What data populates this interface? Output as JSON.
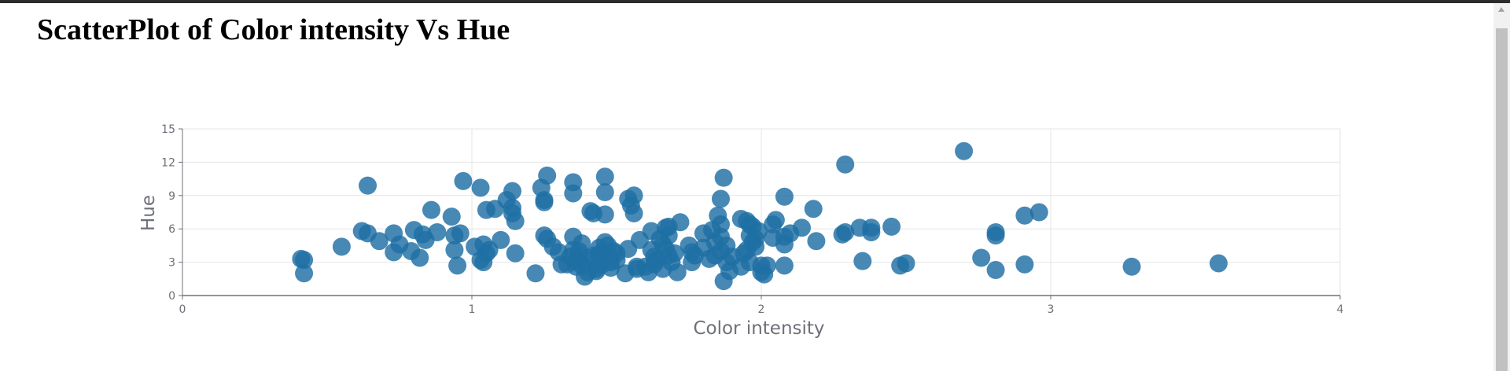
{
  "page": {
    "title": "ScatterPlot of Color intensity Vs Hue"
  },
  "colors": {
    "point": "#1f6fa3",
    "grid": "#e6e6e6",
    "axis": "#6e7079",
    "tick_text": "#6e7079",
    "axis_title": "#6e7079"
  },
  "chart_data": {
    "type": "scatter",
    "title": "ScatterPlot of Color intensity Vs Hue",
    "xlabel": "Color intensity",
    "ylabel": "Hue",
    "xlim": [
      0,
      4
    ],
    "ylim": [
      0,
      15
    ],
    "x_ticks": [
      0,
      1,
      2,
      3,
      4
    ],
    "y_ticks": [
      0,
      3,
      6,
      9,
      12,
      15
    ],
    "grid": true,
    "legend": "none",
    "points": [
      [
        0.41,
        3.3
      ],
      [
        0.42,
        3.2
      ],
      [
        0.42,
        2.0
      ],
      [
        0.55,
        4.4
      ],
      [
        0.62,
        5.8
      ],
      [
        0.64,
        9.9
      ],
      [
        0.64,
        5.6
      ],
      [
        0.68,
        4.9
      ],
      [
        0.73,
        3.9
      ],
      [
        0.73,
        5.6
      ],
      [
        0.75,
        4.6
      ],
      [
        0.79,
        4.0
      ],
      [
        0.8,
        5.9
      ],
      [
        0.82,
        3.4
      ],
      [
        0.83,
        5.5
      ],
      [
        0.84,
        5.0
      ],
      [
        0.86,
        7.7
      ],
      [
        0.88,
        5.7
      ],
      [
        0.93,
        7.1
      ],
      [
        0.94,
        5.4
      ],
      [
        0.94,
        4.1
      ],
      [
        0.95,
        2.7
      ],
      [
        0.96,
        5.6
      ],
      [
        0.97,
        10.3
      ],
      [
        1.01,
        4.4
      ],
      [
        1.03,
        3.2
      ],
      [
        1.03,
        9.7
      ],
      [
        1.04,
        4.6
      ],
      [
        1.04,
        3.0
      ],
      [
        1.05,
        7.7
      ],
      [
        1.05,
        3.8
      ],
      [
        1.06,
        4.1
      ],
      [
        1.08,
        7.8
      ],
      [
        1.1,
        5.0
      ],
      [
        1.12,
        8.6
      ],
      [
        1.14,
        9.4
      ],
      [
        1.14,
        7.9
      ],
      [
        1.14,
        7.4
      ],
      [
        1.15,
        6.7
      ],
      [
        1.15,
        3.8
      ],
      [
        1.22,
        2.0
      ],
      [
        1.24,
        9.7
      ],
      [
        1.25,
        5.4
      ],
      [
        1.25,
        8.6
      ],
      [
        1.25,
        8.4
      ],
      [
        1.26,
        5.1
      ],
      [
        1.26,
        10.8
      ],
      [
        1.28,
        4.4
      ],
      [
        1.3,
        3.9
      ],
      [
        1.31,
        2.8
      ],
      [
        1.33,
        2.8
      ],
      [
        1.34,
        3.5
      ],
      [
        1.35,
        10.2
      ],
      [
        1.35,
        9.2
      ],
      [
        1.35,
        5.3
      ],
      [
        1.35,
        4.1
      ],
      [
        1.36,
        3.1
      ],
      [
        1.36,
        2.6
      ],
      [
        1.37,
        4.0
      ],
      [
        1.37,
        3.3
      ],
      [
        1.38,
        2.7
      ],
      [
        1.38,
        4.7
      ],
      [
        1.39,
        1.7
      ],
      [
        1.4,
        3.4
      ],
      [
        1.4,
        2.1
      ],
      [
        1.41,
        7.6
      ],
      [
        1.42,
        7.4
      ],
      [
        1.42,
        3.6
      ],
      [
        1.43,
        2.4
      ],
      [
        1.43,
        2.2
      ],
      [
        1.44,
        3.7
      ],
      [
        1.44,
        4.3
      ],
      [
        1.45,
        2.8
      ],
      [
        1.45,
        3.9
      ],
      [
        1.46,
        4.8
      ],
      [
        1.46,
        10.7
      ],
      [
        1.46,
        9.3
      ],
      [
        1.46,
        7.3
      ],
      [
        1.47,
        4.5
      ],
      [
        1.48,
        3.0
      ],
      [
        1.48,
        2.5
      ],
      [
        1.49,
        4.0
      ],
      [
        1.5,
        3.2
      ],
      [
        1.5,
        3.8
      ],
      [
        1.53,
        2.0
      ],
      [
        1.54,
        4.2
      ],
      [
        1.54,
        8.7
      ],
      [
        1.55,
        8.1
      ],
      [
        1.56,
        9.0
      ],
      [
        1.56,
        7.4
      ],
      [
        1.57,
        2.4
      ],
      [
        1.57,
        2.6
      ],
      [
        1.58,
        5.0
      ],
      [
        1.6,
        2.6
      ],
      [
        1.61,
        2.1
      ],
      [
        1.62,
        5.8
      ],
      [
        1.62,
        4.1
      ],
      [
        1.63,
        3.5
      ],
      [
        1.63,
        2.8
      ],
      [
        1.64,
        3.2
      ],
      [
        1.65,
        5.1
      ],
      [
        1.66,
        4.6
      ],
      [
        1.66,
        2.4
      ],
      [
        1.67,
        6.1
      ],
      [
        1.67,
        4.2
      ],
      [
        1.68,
        3.6
      ],
      [
        1.68,
        5.4
      ],
      [
        1.68,
        6.2
      ],
      [
        1.69,
        3.0
      ],
      [
        1.7,
        3.8
      ],
      [
        1.71,
        2.1
      ],
      [
        1.72,
        6.6
      ],
      [
        1.75,
        4.5
      ],
      [
        1.76,
        3.9
      ],
      [
        1.76,
        3.0
      ],
      [
        1.77,
        3.6
      ],
      [
        1.8,
        5.6
      ],
      [
        1.8,
        4.3
      ],
      [
        1.82,
        3.3
      ],
      [
        1.83,
        5.9
      ],
      [
        1.84,
        3.6
      ],
      [
        1.84,
        4.8
      ],
      [
        1.85,
        7.2
      ],
      [
        1.86,
        8.7
      ],
      [
        1.86,
        6.4
      ],
      [
        1.86,
        5.3
      ],
      [
        1.86,
        4.0
      ],
      [
        1.87,
        10.6
      ],
      [
        1.87,
        1.3
      ],
      [
        1.88,
        4.5
      ],
      [
        1.88,
        3.0
      ],
      [
        1.89,
        2.2
      ],
      [
        1.9,
        3.5
      ],
      [
        1.93,
        6.9
      ],
      [
        1.93,
        2.6
      ],
      [
        1.94,
        3.8
      ],
      [
        1.95,
        6.7
      ],
      [
        1.95,
        4.1
      ],
      [
        1.96,
        6.4
      ],
      [
        1.96,
        5.4
      ],
      [
        1.96,
        3.0
      ],
      [
        1.97,
        6.2
      ],
      [
        1.97,
        4.8
      ],
      [
        1.98,
        5.1
      ],
      [
        1.98,
        4.4
      ],
      [
        1.99,
        5.8
      ],
      [
        2.0,
        2.7
      ],
      [
        2.0,
        2.1
      ],
      [
        2.01,
        1.9
      ],
      [
        2.02,
        2.7
      ],
      [
        2.04,
        5.2
      ],
      [
        2.04,
        6.4
      ],
      [
        2.05,
        6.8
      ],
      [
        2.08,
        8.9
      ],
      [
        2.08,
        5.3
      ],
      [
        2.08,
        4.6
      ],
      [
        2.08,
        2.7
      ],
      [
        2.1,
        5.6
      ],
      [
        2.14,
        6.1
      ],
      [
        2.18,
        7.8
      ],
      [
        2.19,
        4.9
      ],
      [
        2.28,
        5.5
      ],
      [
        2.29,
        11.8
      ],
      [
        2.29,
        5.7
      ],
      [
        2.34,
        6.1
      ],
      [
        2.35,
        3.1
      ],
      [
        2.38,
        6.1
      ],
      [
        2.38,
        5.7
      ],
      [
        2.45,
        6.2
      ],
      [
        2.48,
        2.7
      ],
      [
        2.5,
        2.9
      ],
      [
        2.7,
        13.0
      ],
      [
        2.76,
        3.4
      ],
      [
        2.81,
        5.7
      ],
      [
        2.81,
        5.4
      ],
      [
        2.81,
        2.3
      ],
      [
        2.91,
        7.2
      ],
      [
        2.91,
        2.8
      ],
      [
        2.96,
        7.5
      ],
      [
        3.28,
        2.6
      ],
      [
        3.58,
        2.9
      ]
    ]
  }
}
